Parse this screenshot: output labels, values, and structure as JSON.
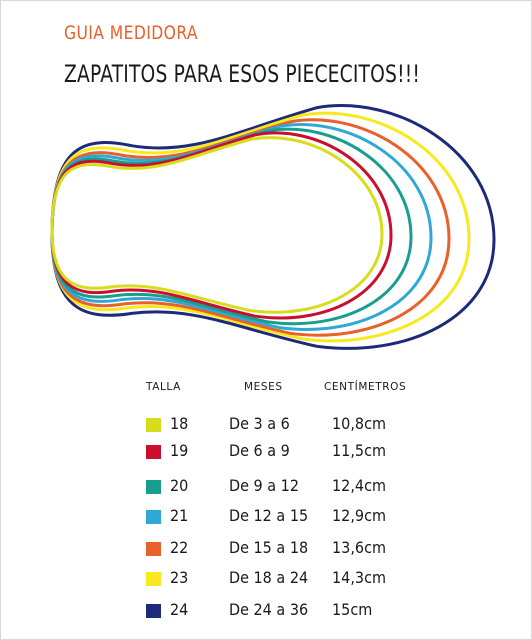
{
  "subtitle": "GUIA MEDIDORA",
  "title": "ZAPATITOS PARA ESOS PIECECITOS!!!",
  "colors": {
    "subtitle": "#e8602a",
    "text": "#1a1a1a"
  },
  "table": {
    "headers": {
      "size": "TALLA",
      "months": "MESES",
      "cm": "CENTÍMETROS"
    },
    "rows": [
      {
        "size": "18",
        "months": "De 3 a 6",
        "cm": "10,8cm",
        "color": "#d7dc1c"
      },
      {
        "size": "19",
        "months": "De 6 a 9",
        "cm": "11,5cm",
        "color": "#c8102e"
      },
      {
        "size": "20",
        "months": "De 9 a 12",
        "cm": "12,4cm",
        "color": "#179e8e"
      },
      {
        "size": "21",
        "months": "De 12 a 15",
        "cm": "12,9cm",
        "color": "#2fa8d8"
      },
      {
        "size": "22",
        "months": "De 15 a 18",
        "cm": "13,6cm",
        "color": "#e8602a"
      },
      {
        "size": "23",
        "months": "De 18 a 24",
        "cm": "14,3cm",
        "color": "#f7e91e"
      },
      {
        "size": "24",
        "months": "De 24 a 36",
        "cm": "15cm",
        "color": "#1d2a7a"
      }
    ]
  }
}
